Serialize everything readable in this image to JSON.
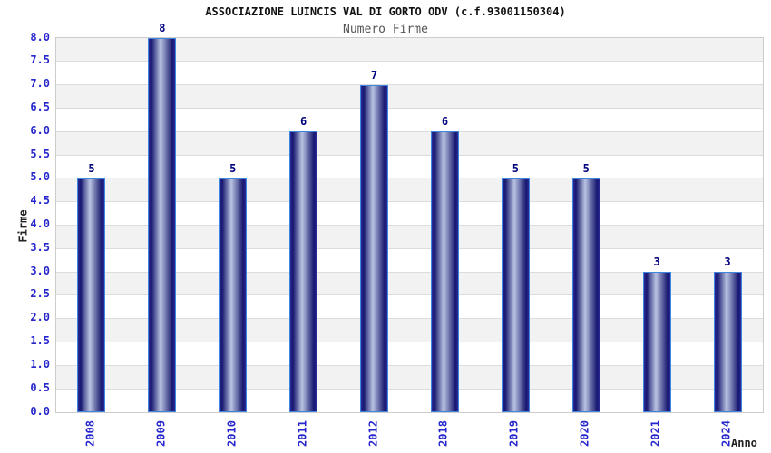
{
  "chart_data": {
    "type": "bar",
    "title": "ASSOCIAZIONE LUINCIS VAL DI GORTO ODV (c.f.93001150304)",
    "subtitle": "Numero Firme",
    "xlabel": "Anno",
    "ylabel": "Firme",
    "categories": [
      "2008",
      "2009",
      "2010",
      "2011",
      "2012",
      "2018",
      "2019",
      "2020",
      "2021",
      "2024"
    ],
    "values": [
      5,
      8,
      5,
      6,
      7,
      6,
      5,
      5,
      3,
      3
    ],
    "ylim": [
      0,
      8
    ],
    "ytick_step": 0.5,
    "grid": true,
    "legend_position": "none",
    "colors": {
      "title": "#111111",
      "subtitle": "#555555",
      "tick_label": "#2626cc",
      "value_label": "#00007d",
      "axis_label": "#222222",
      "stripe_gray": "#f2f2f2",
      "stripe_white": "#ffffff",
      "plot_border": "#cccccc",
      "gridline": "#dcdcdc",
      "bar_border": "#3f86e0",
      "bar_edge": "#2a2a96",
      "bar_dark": "#17176f",
      "bar_light": "#b9c3e1"
    }
  }
}
